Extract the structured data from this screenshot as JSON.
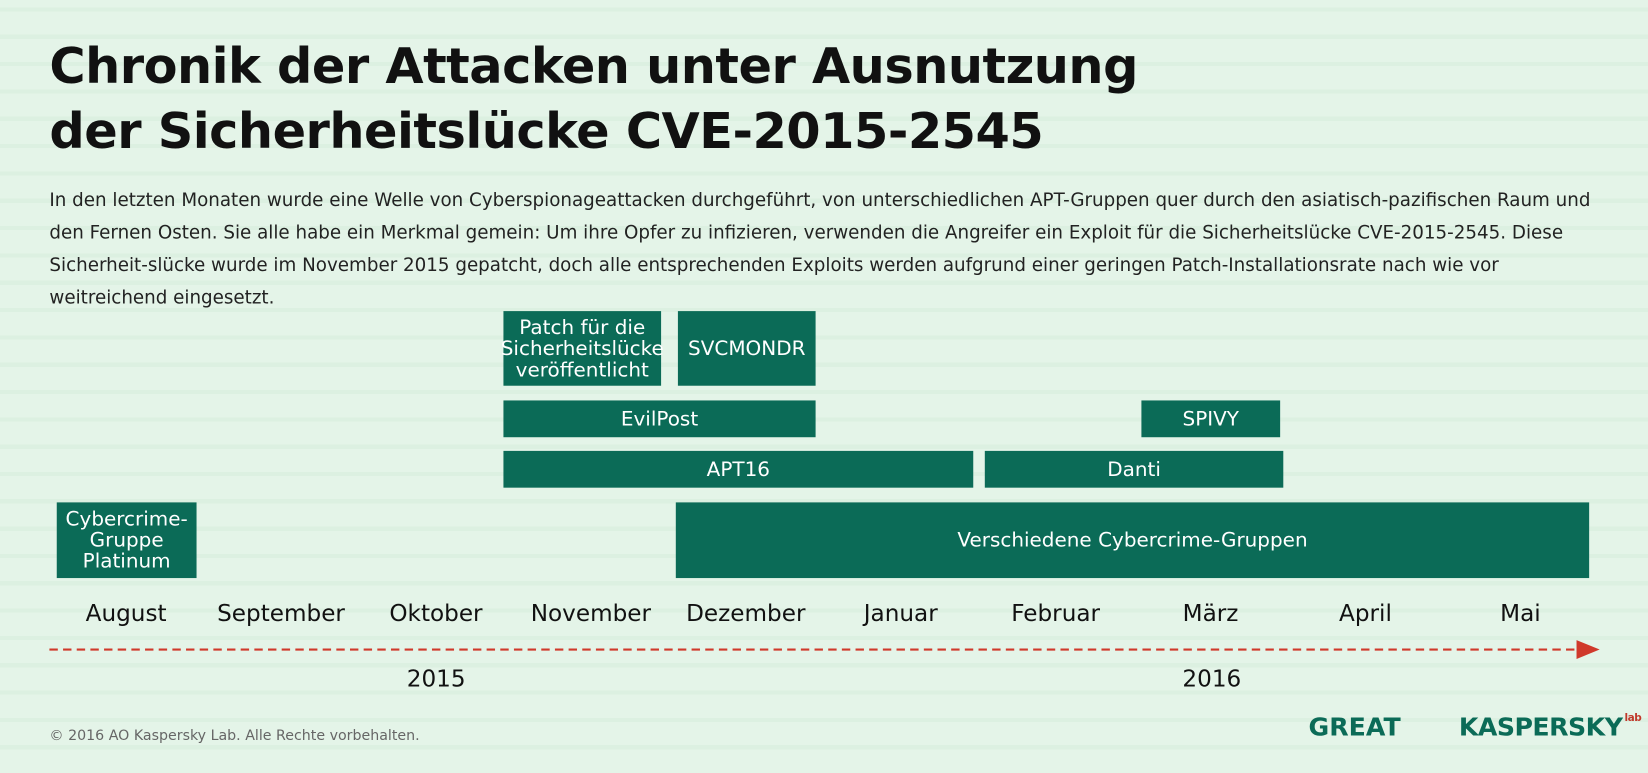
{
  "header": {
    "title": [
      "Chronik der Attacken unter Ausnutzung",
      "der Sicherheitslücke CVE-2015-2545"
    ],
    "description": "In den letzten Monaten wurde eine Welle von Cyberspionageattacken durchgeführt, von unterschiedlichen APT-Gruppen quer durch den asiatisch-pazifischen Raum und den Fernen Osten. Sie alle habe ein Merkmal gemein: Um ihre Opfer zu infizieren, verwenden die Angreifer ein Exploit für die Sicherheitslücke CVE-2015-2545. Diese Sicherheit-slücke wurde im November 2015 gepatcht, doch alle entsprechenden Exploits werden aufgrund einer geringen Patch-Installationsrate nach wie vor weitreichend eingesetzt."
  },
  "timeline": {
    "bars": [
      {
        "label": "Cybercrime-Gruppe Platinum"
      },
      {
        "label": "Patch für die Sicherheitslücke veröffentlicht"
      },
      {
        "label": "SVCMONDR"
      },
      {
        "label": "EvilPost"
      },
      {
        "label": "APT16"
      },
      {
        "label": "SPIVY"
      },
      {
        "label": "Danti"
      },
      {
        "label": "Verschiedene Cybercrime-Gruppen"
      }
    ],
    "months": [
      "August",
      "September",
      "Oktober",
      "November",
      "Dezember",
      "Januar",
      "Februar",
      "März",
      "April",
      "Mai"
    ],
    "years": [
      "2015",
      "2016"
    ]
  },
  "footer": {
    "copyright": "© 2016 AO Kaspersky Lab. Alle Rechte vorbehalten.",
    "logo_great": "GREAT",
    "logo_kaspersky": "KASPERSKY",
    "logo_lab": "lab"
  }
}
